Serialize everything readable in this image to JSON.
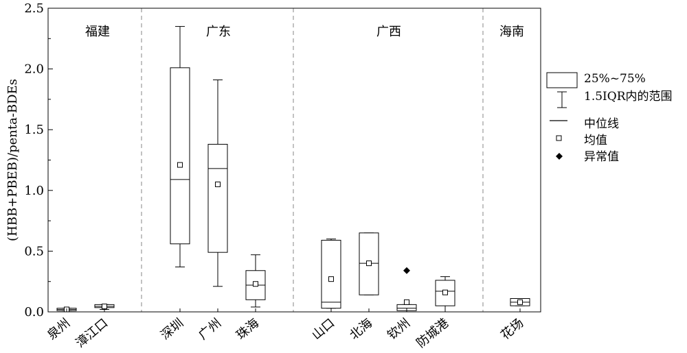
{
  "chart_data": {
    "type": "box",
    "ylabel": "(HBB+PBEB)/penta-BDEs",
    "ylim": [
      0,
      2.5
    ],
    "y_ticks": [
      "0.0",
      "0.5",
      "1.0",
      "1.5",
      "2.0",
      "2.5"
    ],
    "regions": [
      {
        "name": "福建",
        "categories": [
          "泉州",
          "漳江口"
        ]
      },
      {
        "name": "广东",
        "categories": [
          "深圳",
          "广州",
          "珠海"
        ]
      },
      {
        "name": "广西",
        "categories": [
          "山口",
          "北海",
          "钦州",
          "防城港"
        ]
      },
      {
        "name": "海南",
        "categories": [
          "花场"
        ]
      }
    ],
    "boxes": [
      {
        "category": "泉州",
        "q1": 0.01,
        "median": 0.02,
        "q3": 0.03,
        "whisker_low": 0.01,
        "whisker_high": 0.03,
        "mean": 0.02,
        "outliers": []
      },
      {
        "category": "漳江口",
        "q1": 0.035,
        "median": 0.045,
        "q3": 0.06,
        "whisker_low": 0.02,
        "whisker_high": 0.06,
        "mean": 0.045,
        "outliers": []
      },
      {
        "category": "深圳",
        "q1": 0.56,
        "median": 1.09,
        "q3": 2.01,
        "whisker_low": 0.37,
        "whisker_high": 2.35,
        "mean": 1.21,
        "outliers": []
      },
      {
        "category": "广州",
        "q1": 0.49,
        "median": 1.18,
        "q3": 1.38,
        "whisker_low": 0.21,
        "whisker_high": 1.91,
        "mean": 1.05,
        "outliers": []
      },
      {
        "category": "珠海",
        "q1": 0.1,
        "median": 0.22,
        "q3": 0.34,
        "whisker_low": 0.04,
        "whisker_high": 0.47,
        "mean": 0.23,
        "outliers": []
      },
      {
        "category": "山口",
        "q1": 0.03,
        "median": 0.08,
        "q3": 0.59,
        "whisker_low": 0.03,
        "whisker_high": 0.6,
        "mean": 0.27,
        "outliers": []
      },
      {
        "category": "北海",
        "q1": 0.14,
        "median": 0.4,
        "q3": 0.65,
        "whisker_low": 0.14,
        "whisker_high": 0.65,
        "mean": 0.4,
        "outliers": []
      },
      {
        "category": "钦州",
        "q1": 0.01,
        "median": 0.03,
        "q3": 0.06,
        "whisker_low": 0.0,
        "whisker_high": 0.06,
        "mean": 0.08,
        "outliers": [
          0.34
        ]
      },
      {
        "category": "防城港",
        "q1": 0.05,
        "median": 0.17,
        "q3": 0.26,
        "whisker_low": 0.0,
        "whisker_high": 0.29,
        "mean": 0.16,
        "outliers": []
      },
      {
        "category": "花场",
        "q1": 0.05,
        "median": 0.08,
        "q3": 0.11,
        "whisker_low": 0.05,
        "whisker_high": 0.11,
        "mean": 0.08,
        "outliers": []
      }
    ],
    "legend": {
      "position": "right",
      "box": "25%~75%",
      "whisker": "1.5IQR内的范围",
      "median": "中位线",
      "mean": "均值",
      "outlier": "异常值"
    },
    "grid": false
  }
}
